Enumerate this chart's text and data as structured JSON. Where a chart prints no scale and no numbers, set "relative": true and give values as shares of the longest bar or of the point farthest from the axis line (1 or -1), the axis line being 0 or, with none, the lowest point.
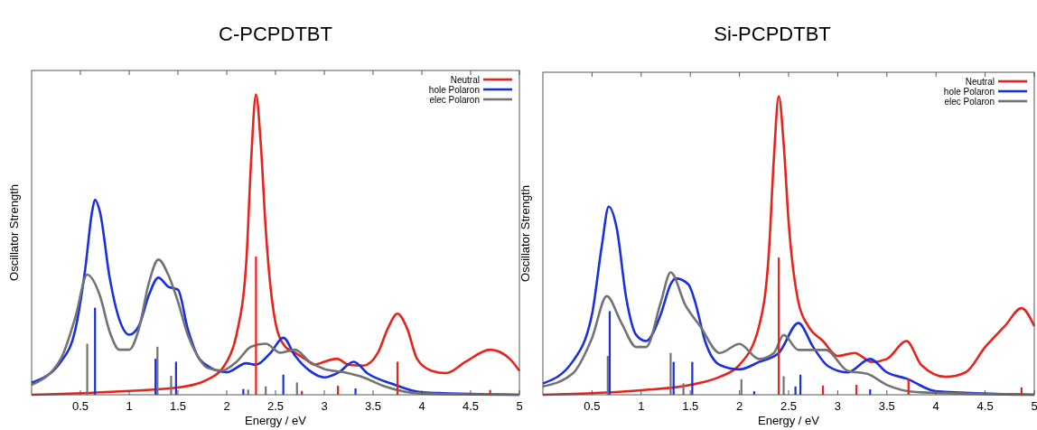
{
  "chart_data": [
    {
      "type": "line",
      "title": "C-PCPDTBT",
      "xlabel": "Energy / eV",
      "ylabel": "Oscillator Strength",
      "relative": true,
      "xlim": [
        0,
        5
      ],
      "xticks": [
        0.5,
        1,
        1.5,
        2,
        2.5,
        3,
        3.5,
        4,
        4.5,
        5
      ],
      "legend": "top right",
      "line_style": "solid",
      "series": [
        {
          "name": "Neutral",
          "color": "#e8231b",
          "x": [
            0,
            1,
            1.5,
            1.8,
            2,
            2.1,
            2.2,
            2.25,
            2.3,
            2.35,
            2.4,
            2.5,
            2.6,
            2.7,
            2.8,
            2.9,
            3,
            3.13,
            3.25,
            3.4,
            3.55,
            3.65,
            3.75,
            3.85,
            3.95,
            4.1,
            4.25,
            4.45,
            4.7,
            4.9,
            5
          ],
          "values": [
            0,
            0.013,
            0.024,
            0.05,
            0.11,
            0.2,
            0.44,
            0.78,
            1,
            0.83,
            0.55,
            0.24,
            0.16,
            0.14,
            0.12,
            0.1,
            0.11,
            0.12,
            0.1,
            0.097,
            0.14,
            0.22,
            0.27,
            0.22,
            0.12,
            0.08,
            0.072,
            0.11,
            0.15,
            0.12,
            0.08
          ]
        },
        {
          "name": "hole Polaron",
          "color": "#1a2fe0",
          "x": [
            0,
            0.3,
            0.45,
            0.55,
            0.62,
            0.65,
            0.7,
            0.8,
            0.9,
            1,
            1.1,
            1.2,
            1.3,
            1.4,
            1.5,
            1.6,
            1.7,
            1.8,
            2,
            2.2,
            2.3,
            2.45,
            2.58,
            2.7,
            2.85,
            3,
            3.15,
            3.3,
            3.45,
            3.7,
            4,
            5
          ],
          "values": [
            0.04,
            0.11,
            0.22,
            0.42,
            0.61,
            0.65,
            0.61,
            0.39,
            0.25,
            0.2,
            0.23,
            0.33,
            0.39,
            0.36,
            0.35,
            0.22,
            0.13,
            0.097,
            0.075,
            0.105,
            0.1,
            0.14,
            0.19,
            0.13,
            0.08,
            0.058,
            0.075,
            0.11,
            0.07,
            0.036,
            0.008,
            0
          ]
        },
        {
          "name": "elec Polaron",
          "color": "#737373",
          "x": [
            0,
            0.3,
            0.45,
            0.57,
            0.7,
            0.8,
            0.9,
            1,
            1.1,
            1.2,
            1.3,
            1.4,
            1.5,
            1.6,
            1.7,
            1.8,
            1.95,
            2.1,
            2.25,
            2.4,
            2.55,
            2.7,
            2.85,
            3,
            3.2,
            3.4,
            3.6,
            4,
            5
          ],
          "values": [
            0.033,
            0.12,
            0.26,
            0.4,
            0.33,
            0.21,
            0.15,
            0.15,
            0.22,
            0.37,
            0.45,
            0.4,
            0.31,
            0.2,
            0.13,
            0.09,
            0.08,
            0.11,
            0.16,
            0.17,
            0.14,
            0.15,
            0.11,
            0.086,
            0.075,
            0.058,
            0.03,
            0.004,
            0
          ]
        },
        {
          "type": "bar",
          "color": "#737373",
          "x": [
            0.57,
            1.29,
            1.43,
            2.22,
            2.4,
            2.72
          ],
          "values": [
            0.17,
            0.16,
            0.063,
            0.017,
            0.028,
            0.041
          ]
        },
        {
          "type": "bar",
          "color": "#1a2fe0",
          "x": [
            0.65,
            1.27,
            1.48,
            2.17,
            2.58,
            3.32
          ],
          "values": [
            0.29,
            0.12,
            0.11,
            0.019,
            0.067,
            0.021
          ]
        },
        {
          "type": "bar",
          "color": "#e8231b",
          "x": [
            2.3,
            2.77,
            3.14,
            3.75,
            4.7
          ],
          "values": [
            0.46,
            0.013,
            0.03,
            0.11,
            0.016
          ]
        }
      ]
    },
    {
      "type": "line",
      "title": "Si-PCPDTBT",
      "xlabel": "Energy / eV",
      "ylabel": "Oscillator Strength",
      "relative": true,
      "xlim": [
        0,
        5
      ],
      "xticks": [
        0.5,
        1,
        1.5,
        2,
        2.5,
        3,
        3.5,
        4,
        4.5,
        5
      ],
      "legend": "top right",
      "line_style": "solid",
      "series": [
        {
          "name": "Neutral",
          "color": "#e8231b",
          "x": [
            0,
            1,
            1.5,
            1.8,
            2,
            2.2,
            2.3,
            2.35,
            2.4,
            2.45,
            2.5,
            2.6,
            2.7,
            2.85,
            3,
            3.17,
            3.35,
            3.5,
            3.7,
            3.85,
            4.1,
            4.3,
            4.5,
            4.7,
            4.87,
            5
          ],
          "values": [
            0,
            0.015,
            0.033,
            0.06,
            0.1,
            0.23,
            0.48,
            0.79,
            1,
            0.84,
            0.58,
            0.31,
            0.23,
            0.18,
            0.13,
            0.14,
            0.11,
            0.12,
            0.18,
            0.1,
            0.06,
            0.075,
            0.16,
            0.23,
            0.29,
            0.23
          ]
        },
        {
          "name": "hole Polaron",
          "color": "#1a2fe0",
          "x": [
            0,
            0.3,
            0.5,
            0.6,
            0.67,
            0.75,
            0.85,
            0.95,
            1.05,
            1.2,
            1.3,
            1.35,
            1.48,
            1.55,
            1.65,
            1.8,
            2,
            2.2,
            2.4,
            2.6,
            2.75,
            2.9,
            3.1,
            3.33,
            3.5,
            3.7,
            4,
            5
          ],
          "values": [
            0.038,
            0.11,
            0.27,
            0.5,
            0.63,
            0.56,
            0.32,
            0.2,
            0.18,
            0.27,
            0.37,
            0.39,
            0.37,
            0.31,
            0.18,
            0.1,
            0.085,
            0.11,
            0.14,
            0.24,
            0.16,
            0.096,
            0.075,
            0.12,
            0.075,
            0.054,
            0.012,
            0
          ]
        },
        {
          "name": "elec Polaron",
          "color": "#737373",
          "x": [
            0,
            0.3,
            0.5,
            0.65,
            0.8,
            0.95,
            1.05,
            1.2,
            1.3,
            1.45,
            1.6,
            1.8,
            2,
            2.2,
            2.35,
            2.45,
            2.6,
            2.88,
            3.1,
            3.3,
            3.5,
            3.8,
            5
          ],
          "values": [
            0.028,
            0.07,
            0.19,
            0.33,
            0.24,
            0.16,
            0.16,
            0.31,
            0.41,
            0.3,
            0.23,
            0.14,
            0.17,
            0.12,
            0.14,
            0.2,
            0.15,
            0.15,
            0.08,
            0.07,
            0.033,
            0.009,
            0
          ]
        },
        {
          "type": "bar",
          "color": "#737373",
          "x": [
            0.66,
            1.3,
            1.43,
            2.02,
            2.45
          ],
          "values": [
            0.13,
            0.14,
            0.038,
            0.052,
            0.062
          ]
        },
        {
          "type": "bar",
          "color": "#1a2fe0",
          "x": [
            0.68,
            1.33,
            1.52,
            2.15,
            2.57,
            2.62,
            3.33
          ],
          "values": [
            0.28,
            0.11,
            0.11,
            0.012,
            0.028,
            0.067,
            0.018
          ]
        },
        {
          "type": "bar",
          "color": "#e8231b",
          "x": [
            2.4,
            2.85,
            3.19,
            3.72,
            4.87
          ],
          "values": [
            0.46,
            0.031,
            0.033,
            0.054,
            0.025
          ]
        }
      ]
    }
  ]
}
